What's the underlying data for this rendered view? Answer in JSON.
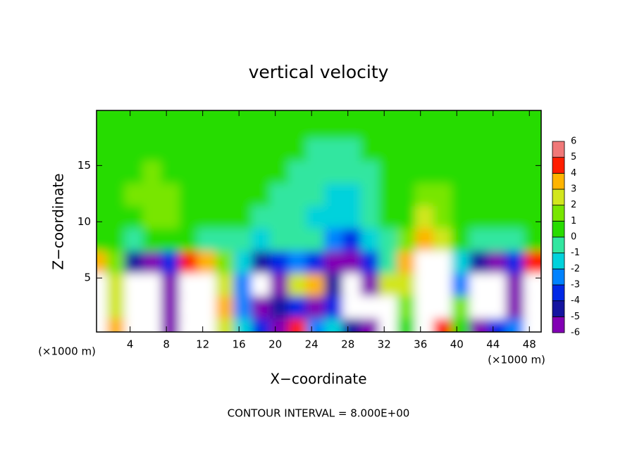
{
  "chart_data": {
    "type": "contour",
    "title": "vertical velocity",
    "x_label": "X−coordinate",
    "y_label": "Z−coordinate",
    "x_unit": "(×1000 m)",
    "y_unit": "(×1000 m)",
    "footnote": "CONTOUR INTERVAL = 8.000E+00",
    "xlim": [
      0.3,
      49.3
    ],
    "ylim": [
      0.2,
      19.9
    ],
    "xticks": [
      4,
      8,
      12,
      16,
      20,
      24,
      28,
      32,
      36,
      40,
      44,
      48
    ],
    "yticks": [
      5,
      10,
      15
    ],
    "x": [
      1,
      3,
      5,
      7,
      9,
      11,
      13,
      15,
      17,
      19,
      21,
      23,
      25,
      27,
      29,
      31,
      33,
      35,
      37,
      39,
      41,
      43,
      45,
      47,
      49
    ],
    "y": [
      1,
      3,
      5,
      7,
      9,
      11,
      13,
      15,
      17,
      19
    ],
    "z": [
      [
        8,
        4,
        -8,
        -9,
        -5,
        8,
        7,
        3,
        -1,
        -3,
        -5,
        5,
        -2,
        -1,
        -4,
        -5,
        8,
        1,
        7,
        5,
        1,
        -5,
        -3,
        -2,
        7
      ],
      [
        9,
        3,
        -9,
        -9,
        -6,
        9,
        9,
        4,
        -2,
        -5,
        -4,
        -3,
        -5,
        -3,
        -8,
        -7,
        8,
        2,
        9,
        8,
        2,
        -8,
        -7,
        -5,
        9
      ],
      [
        8,
        3,
        -8,
        -9,
        -5,
        9,
        8,
        3,
        -2,
        -8,
        -5,
        3,
        4,
        -4,
        -8,
        -5,
        3,
        3,
        9,
        9,
        -2,
        -7,
        -8,
        -5,
        8
      ],
      [
        4,
        2,
        -4,
        -5,
        -3,
        5,
        4,
        2,
        -1,
        -4,
        -3,
        -2,
        -3,
        -5,
        -5,
        -3,
        0,
        4,
        8,
        7,
        -1,
        -4,
        -5,
        -3,
        5
      ],
      [
        0.5,
        0.5,
        0,
        0.5,
        1,
        0.5,
        0,
        0,
        0,
        -1,
        -0.5,
        0,
        -0.5,
        -2,
        -3,
        -1,
        0,
        2,
        4,
        3,
        0.5,
        0,
        0,
        0,
        0.5
      ],
      [
        0.8,
        0.8,
        1,
        1.2,
        1.2,
        0.8,
        0.5,
        0.5,
        0.3,
        0,
        -0.5,
        -0.8,
        -1,
        -1.2,
        -1.5,
        -0.5,
        0.3,
        1,
        3,
        1.5,
        0.8,
        0.5,
        0.5,
        0.5,
        0.5
      ],
      [
        0.6,
        0.8,
        1.2,
        1.3,
        1.2,
        0.8,
        0.6,
        0.5,
        0.3,
        0.2,
        0,
        -0.3,
        -0.6,
        -1.2,
        -1,
        -0.3,
        0.3,
        0.8,
        1.5,
        1.2,
        0.8,
        0.6,
        0.5,
        0.5,
        0.5
      ],
      [
        0.5,
        0.6,
        1,
        1.2,
        1,
        0.6,
        0.5,
        0.4,
        0.3,
        0.3,
        0.2,
        0,
        -0.2,
        -0.5,
        -0.3,
        0,
        0.3,
        0.6,
        1,
        0.8,
        0.6,
        0.5,
        0.4,
        0.4,
        0.4
      ],
      [
        0.5,
        0.5,
        0.7,
        0.8,
        0.7,
        0.5,
        0.4,
        0.4,
        0.4,
        0.3,
        0.3,
        0.2,
        0,
        -0.2,
        -0.2,
        0.1,
        0.3,
        0.5,
        0.7,
        0.6,
        0.5,
        0.4,
        0.4,
        0.4,
        0.4
      ],
      [
        0.4,
        0.4,
        0.5,
        0.5,
        0.5,
        0.4,
        0.4,
        0.4,
        0.4,
        0.4,
        0.3,
        0.3,
        0.2,
        0.1,
        0.1,
        0.2,
        0.3,
        0.4,
        0.5,
        0.5,
        0.4,
        0.4,
        0.4,
        0.4,
        0.4
      ]
    ],
    "colorbar": {
      "levels": [
        -6,
        -5,
        -4,
        -3,
        -2,
        -1,
        0,
        1,
        2,
        3,
        4,
        5,
        6
      ],
      "colors": [
        "#8200b4",
        "#1414a0",
        "#0028e6",
        "#0082ff",
        "#00d2dc",
        "#32e6a0",
        "#28dc00",
        "#78e600",
        "#d2e61e",
        "#ffb400",
        "#ff1e00",
        "#f07878"
      ]
    },
    "out_of_range_color": "#ffffff"
  }
}
